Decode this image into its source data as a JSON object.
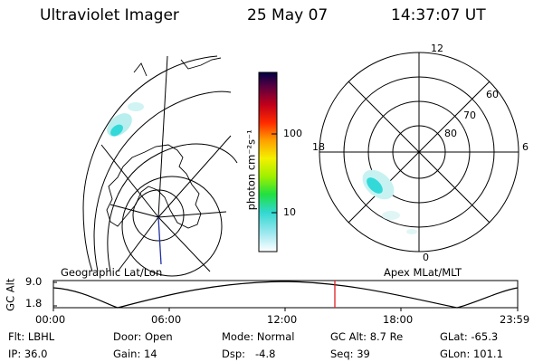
{
  "header": {
    "instrument": "Ultraviolet Imager",
    "date": "25 May 07",
    "time": "14:37:07 UT"
  },
  "geo_panel": {
    "caption": "Geographic Lat/Lon"
  },
  "colorbar": {
    "unit_label": "photon cm⁻²s⁻¹",
    "tick_high": "100",
    "tick_low": "10"
  },
  "polar_panel": {
    "caption": "Apex MLat/MLT",
    "mlt_top": "12",
    "mlt_left": "18",
    "mlt_right": "6",
    "mlt_bottom": "0",
    "lat_60": "60",
    "lat_70": "70",
    "lat_80": "80"
  },
  "altitude_strip": {
    "axis_title": "GC Alt",
    "y_top": "9.0",
    "y_bottom": "1.8",
    "x_ticks": [
      "00:00",
      "06:00",
      "12:00",
      "18:00",
      "23:59"
    ]
  },
  "status": {
    "filter": "Flt: LBHL",
    "door": "Door: Open",
    "mode": "Mode: Normal",
    "gc_alt": "GC Alt: 8.7 Re",
    "glat": "GLat: -65.3",
    "ip": "IP: 36.0",
    "gain": "Gain: 14",
    "dsp": "Dsp:   -4.8",
    "seq": "Seq: 39",
    "glon": "GLon: 101.1"
  },
  "colors": {
    "aurora_core": "#33d9d9",
    "aurora_faint": "#b8eeee",
    "time_marker": "#e02020",
    "meridian": "#2030a0"
  }
}
